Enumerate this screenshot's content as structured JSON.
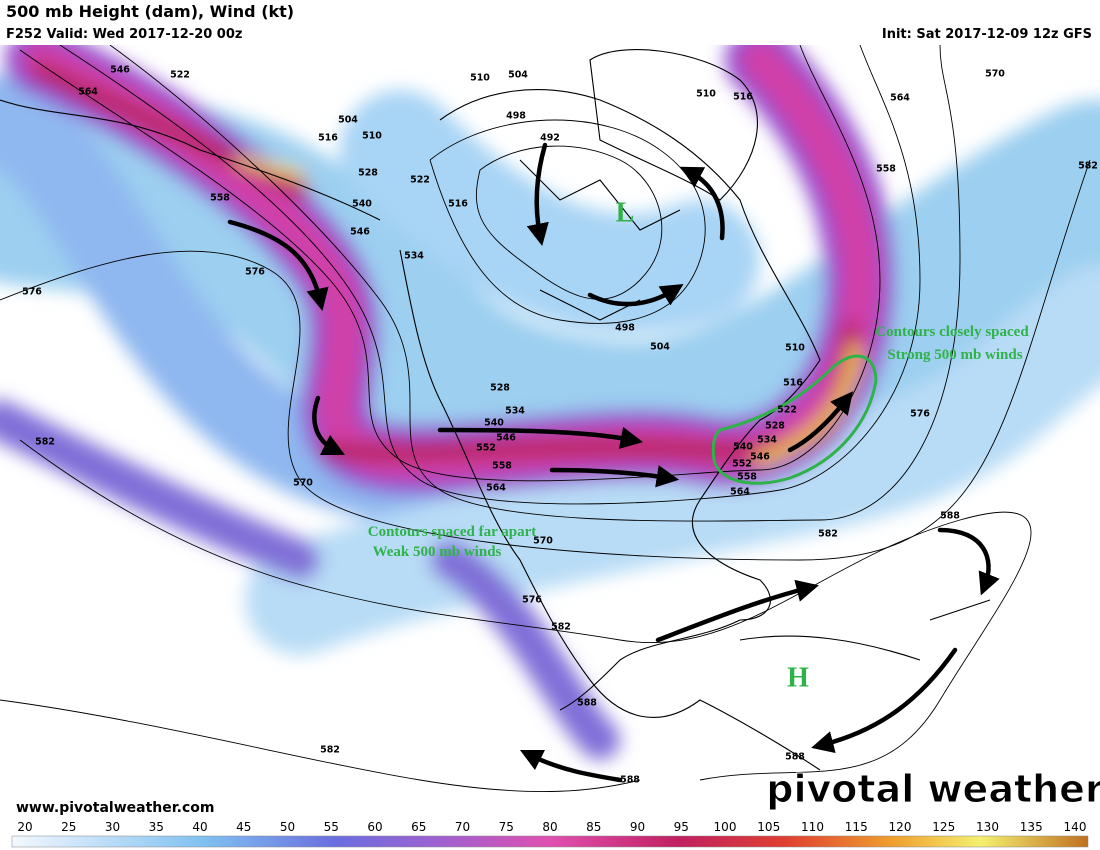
{
  "header": {
    "title": "500 mb Height (dam), Wind (kt)",
    "valid": "F252 Valid: Wed 2017-12-20 00z",
    "init": "Init: Sat 2017-12-09 12z GFS"
  },
  "contour_labels": [
    "546",
    "564",
    "522",
    "516",
    "504",
    "510",
    "528",
    "522",
    "540",
    "546",
    "558",
    "534",
    "576",
    "576",
    "510",
    "504",
    "498",
    "492",
    "516",
    "498",
    "504",
    "510",
    "516",
    "564",
    "570",
    "558",
    "582",
    "510",
    "516",
    "522",
    "528",
    "534",
    "540",
    "546",
    "552",
    "558",
    "564",
    "576",
    "582",
    "588",
    "528",
    "534",
    "540",
    "546",
    "552",
    "558",
    "564",
    "570",
    "570",
    "576",
    "582",
    "588",
    "588",
    "588",
    "582",
    "582"
  ],
  "pressure_centers": [
    "L",
    "H"
  ],
  "annotations": [
    {
      "lines": [
        "Contours closely spaced",
        "Strong 500 mb winds"
      ]
    },
    {
      "lines": [
        "Contours spaced far apart",
        "Weak 500 mb winds"
      ]
    }
  ],
  "footer": {
    "website": "www.pivotalweather.com",
    "logo": "pivotal weather"
  },
  "colorbar": {
    "ticks": [
      20,
      25,
      30,
      35,
      40,
      45,
      50,
      55,
      60,
      65,
      70,
      75,
      80,
      85,
      90,
      95,
      100,
      105,
      110,
      115,
      120,
      125,
      130,
      135,
      140
    ]
  }
}
